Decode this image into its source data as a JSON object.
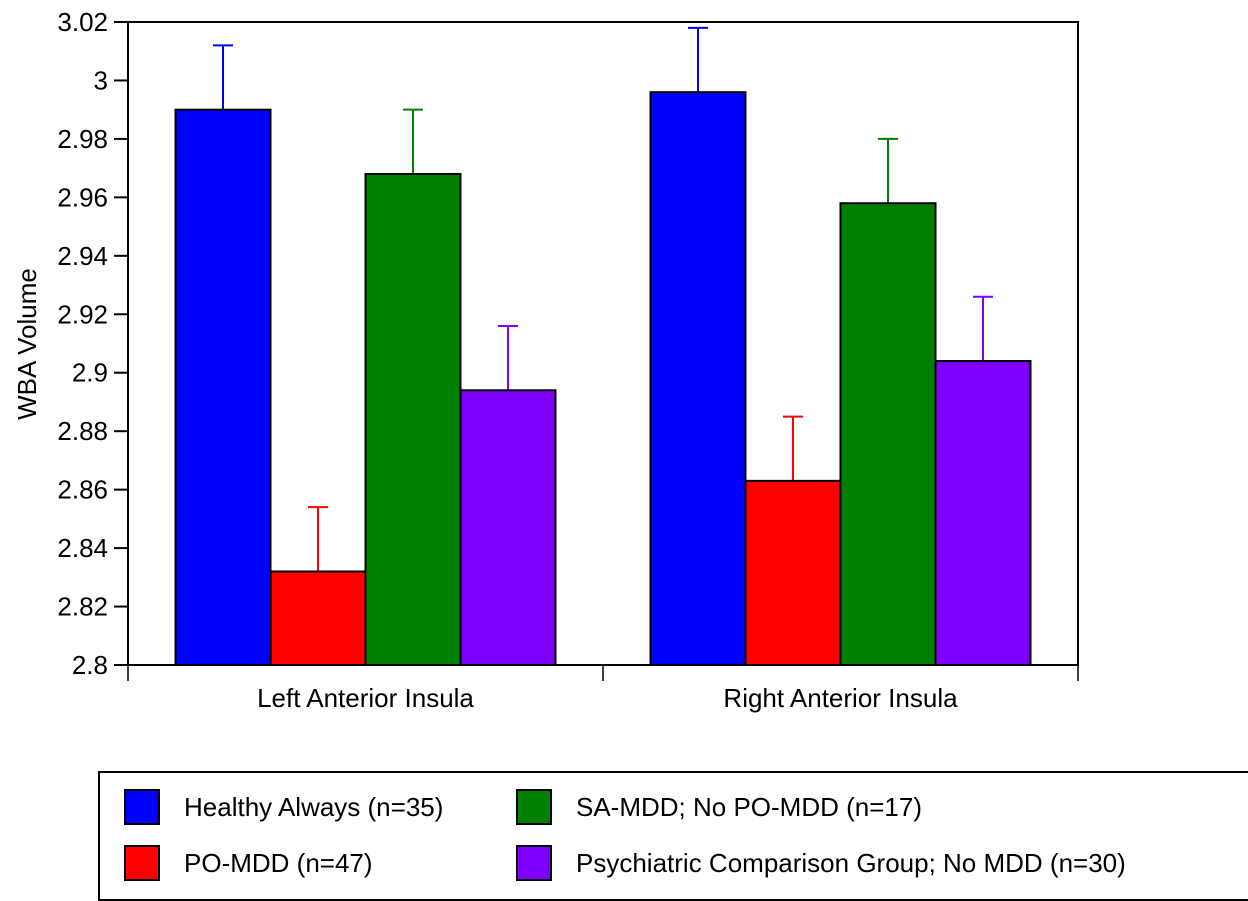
{
  "chart_data": {
    "type": "bar",
    "title": "",
    "xlabel": "",
    "ylabel": "WBA Volume",
    "ylim": [
      2.8,
      3.02
    ],
    "yticks": [
      "2.8",
      "2.82",
      "2.84",
      "2.86",
      "2.88",
      "2.9",
      "2.92",
      "2.94",
      "2.96",
      "2.98",
      "3",
      "3.02"
    ],
    "categories": [
      "Left Anterior Insula",
      "Right Anterior Insula"
    ],
    "grid": false,
    "legend_position": "bottom",
    "series": [
      {
        "name": "Healthy Always (n=35)",
        "color": "#0000ff",
        "values": [
          2.99,
          2.996
        ],
        "errors": [
          0.022,
          0.022
        ]
      },
      {
        "name": "PO-MDD (n=47)",
        "color": "#ff0000",
        "values": [
          2.832,
          2.863
        ],
        "errors": [
          0.022,
          0.022
        ]
      },
      {
        "name": "SA-MDD; No PO-MDD (n=17)",
        "color": "#008000",
        "values": [
          2.968,
          2.958
        ],
        "errors": [
          0.022,
          0.022
        ]
      },
      {
        "name": "Psychiatric Comparison Group; No MDD (n=30)",
        "color": "#8000ff",
        "values": [
          2.894,
          2.904
        ],
        "errors": [
          0.022,
          0.022
        ]
      }
    ]
  }
}
